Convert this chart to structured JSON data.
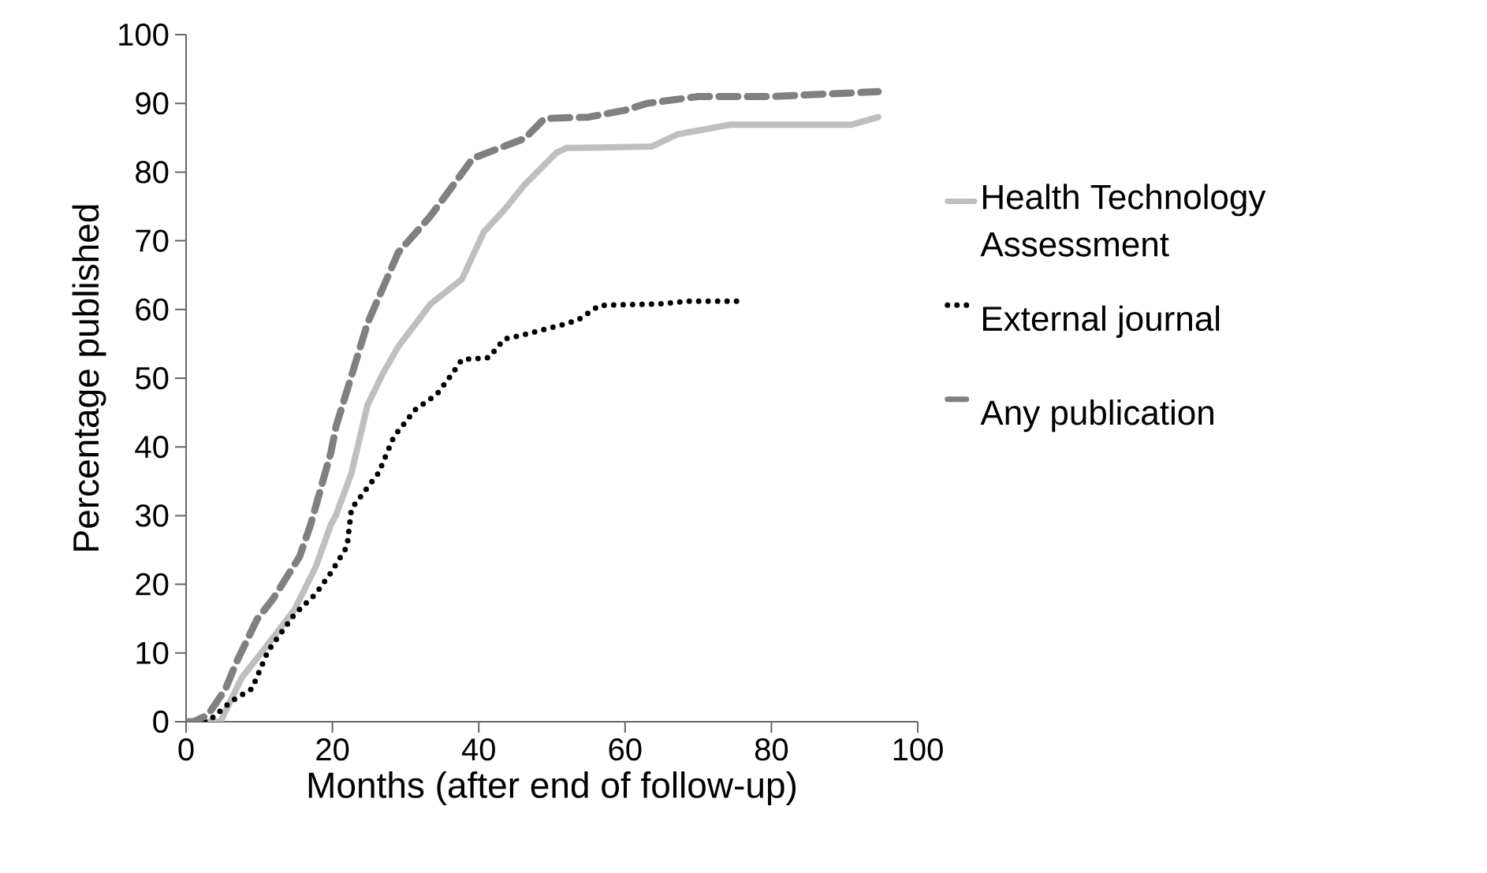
{
  "chart_data": {
    "type": "line",
    "xlabel": "Months (after end of follow-up)",
    "ylabel": "Percentage published",
    "xlim": [
      0,
      100
    ],
    "xticks": [
      0,
      20,
      40,
      60,
      80,
      100
    ],
    "ylim": [
      0,
      100
    ],
    "yticks": [
      0,
      10,
      20,
      30,
      40,
      50,
      60,
      70,
      80,
      90,
      100
    ],
    "legend": "right",
    "marker": "none",
    "series": [
      {
        "name": "Health Technology Assessment",
        "color": "#bfbfbf",
        "line_style": "solid",
        "x": [
          0,
          4.7,
          7.6,
          11,
          14.8,
          17.7,
          19.8,
          20.5,
          22.6,
          24.8,
          26.9,
          29,
          32,
          33.4,
          37.7,
          40.7,
          43.5,
          46.3,
          50.6,
          52,
          63.6,
          67.2,
          74.4,
          91,
          94.6
        ],
        "values": [
          0,
          0,
          6.4,
          11,
          16.3,
          22.5,
          28.7,
          30.1,
          36.2,
          46.1,
          50.7,
          54.6,
          58.8,
          60.8,
          64.4,
          71.3,
          74.5,
          78.2,
          82.8,
          83.5,
          83.7,
          85.5,
          86.9,
          86.9,
          88
        ]
      },
      {
        "name": "External journal",
        "color": "#000000",
        "line_style": "dotted",
        "x": [
          0,
          3,
          6.2,
          9,
          11.2,
          14.8,
          17.7,
          19.8,
          22,
          22.6,
          26.3,
          28.4,
          31.3,
          34.3,
          36.4,
          37.7,
          41.4,
          43.5,
          45.7,
          52.2,
          53.6,
          56.5,
          64.4,
          68.8,
          75.9
        ],
        "values": [
          0,
          0,
          3,
          4.8,
          10.3,
          15.6,
          18.6,
          21.7,
          25.5,
          31,
          36.2,
          41.5,
          45.4,
          47.7,
          50.7,
          52.7,
          53,
          55.7,
          56.2,
          58,
          58.5,
          60.6,
          60.8,
          61.2,
          61.2
        ]
      },
      {
        "name": "Any publication",
        "color": "#808080",
        "line_style": "dashed",
        "x": [
          0,
          1,
          3,
          5.4,
          6.9,
          9.7,
          11.9,
          15.5,
          17,
          19.8,
          20.5,
          24.8,
          29,
          33.4,
          39.2,
          46.3,
          49,
          55,
          60,
          63,
          70,
          80,
          94.6
        ],
        "values": [
          0,
          0,
          1,
          4.8,
          8.7,
          14.9,
          17.9,
          24,
          28.6,
          39.2,
          43,
          58,
          68.3,
          73.6,
          82,
          84.9,
          87.8,
          88,
          89,
          90,
          91,
          91,
          91.7
        ]
      }
    ]
  }
}
